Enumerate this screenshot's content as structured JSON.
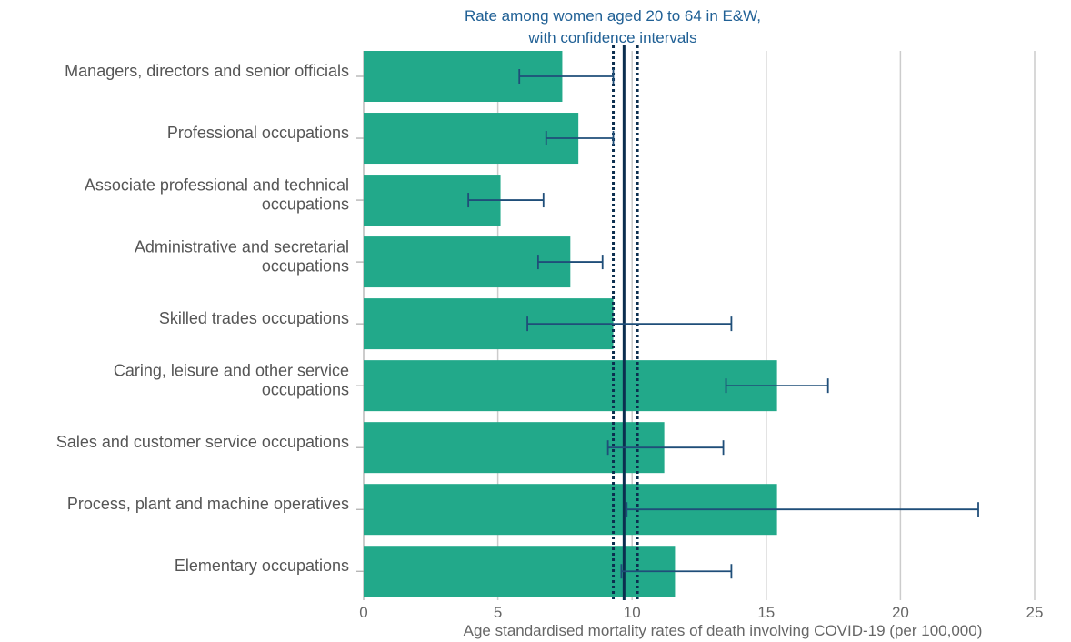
{
  "chart_data": {
    "type": "bar",
    "orientation": "horizontal",
    "categories": [
      [
        "Managers, directors and senior officials"
      ],
      [
        "Professional occupations"
      ],
      [
        "Associate professional and technical",
        "occupations"
      ],
      [
        "Administrative and secretarial",
        "occupations"
      ],
      [
        "Skilled trades occupations"
      ],
      [
        "Caring, leisure and other service",
        "occupations"
      ],
      [
        "Sales and customer service occupations"
      ],
      [
        "Process, plant and machine operatives"
      ],
      [
        "Elementary occupations"
      ]
    ],
    "values": [
      7.4,
      8.0,
      5.1,
      7.7,
      9.3,
      15.4,
      11.2,
      15.4,
      11.6
    ],
    "ci_lower": [
      5.8,
      6.8,
      3.9,
      6.5,
      6.1,
      13.5,
      9.1,
      9.8,
      9.6
    ],
    "ci_upper": [
      9.3,
      9.3,
      6.7,
      8.9,
      13.7,
      17.3,
      13.4,
      22.9,
      13.7
    ],
    "reference": {
      "value": 9.7,
      "ci_lower": 9.3,
      "ci_upper": 10.2,
      "label_lines": [
        "Rate among women aged 20 to 64 in E&W,",
        "with confidence intervals"
      ]
    },
    "xlim": [
      0,
      25
    ],
    "xticks": [
      0,
      5,
      10,
      15,
      20,
      25
    ],
    "xlabel": "Age standardised mortality rates of death involving COVID-19 (per 100,000)",
    "grid": true,
    "bar_color": "#22a98a",
    "errorbar_color": "#1f4e79",
    "reference_color": "#0b2e4f",
    "grid_color": "#cccccc"
  }
}
